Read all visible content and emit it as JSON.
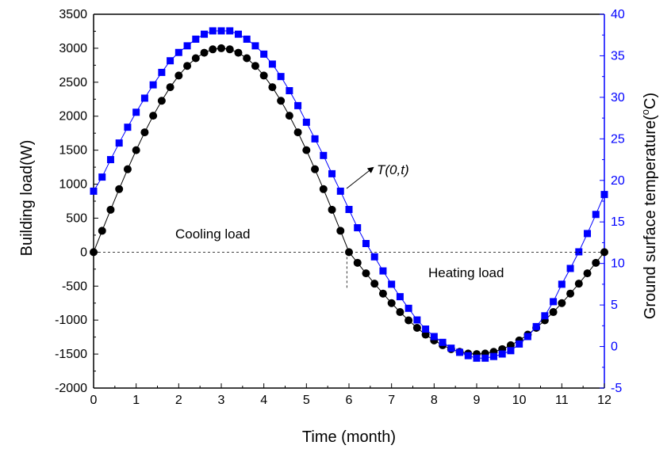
{
  "chart_data": {
    "type": "scatter",
    "title": "",
    "xlabel": "Time (month)",
    "ylabel": "Building load(W)",
    "y2label": "Ground surface temperature(",
    "y2label_sup": "o",
    "y2label_tail": "C)",
    "xlim": [
      0,
      12
    ],
    "ylim": [
      -2000,
      3500
    ],
    "y2lim": [
      -5,
      40
    ],
    "xticks": [
      "0",
      "1",
      "2",
      "3",
      "4",
      "5",
      "6",
      "7",
      "8",
      "9",
      "10",
      "11",
      "12"
    ],
    "yticks": [
      "-2000",
      "-1500",
      "-1000",
      "-500",
      "0",
      "500",
      "1000",
      "1500",
      "2000",
      "2500",
      "3000",
      "3500"
    ],
    "y2ticks": [
      "-5",
      "0",
      "5",
      "10",
      "15",
      "20",
      "25",
      "30",
      "35",
      "40"
    ],
    "grid": false,
    "x": [
      0,
      0.2,
      0.4,
      0.6,
      0.8,
      1.0,
      1.2,
      1.4,
      1.6,
      1.8,
      2.0,
      2.2,
      2.4,
      2.6,
      2.8,
      3.0,
      3.2,
      3.4,
      3.6,
      3.8,
      4.0,
      4.2,
      4.4,
      4.6,
      4.8,
      5.0,
      5.2,
      5.4,
      5.6,
      5.8,
      6.0,
      6.2,
      6.4,
      6.6,
      6.8,
      7.0,
      7.2,
      7.4,
      7.6,
      7.8,
      8.0,
      8.2,
      8.4,
      8.6,
      8.8,
      9.0,
      9.2,
      9.4,
      9.6,
      9.8,
      10.0,
      10.2,
      10.4,
      10.6,
      10.8,
      11.0,
      11.2,
      11.4,
      11.6,
      11.8,
      12.0
    ],
    "series": [
      {
        "name": "",
        "axis": "left",
        "color": "#000000",
        "marker": "circle",
        "values": [
          0,
          314,
          624,
          927,
          1220,
          1500,
          1763,
          2007,
          2227,
          2427,
          2598,
          2740,
          2853,
          2934,
          2984,
          3000,
          2984,
          2934,
          2853,
          2740,
          2598,
          2427,
          2227,
          2007,
          1763,
          1500,
          1220,
          927,
          624,
          314,
          0,
          -157,
          -312,
          -464,
          -610,
          -750,
          -882,
          -1004,
          -1114,
          -1214,
          -1299,
          -1370,
          -1427,
          -1467,
          -1492,
          -1500,
          -1492,
          -1467,
          -1427,
          -1370,
          -1299,
          -1214,
          -1114,
          -1004,
          -882,
          -750,
          -610,
          -464,
          -312,
          -157,
          0
        ]
      },
      {
        "name": "",
        "axis": "right",
        "color": "#0000ff",
        "marker": "square",
        "values": [
          18.7,
          20.4,
          22.5,
          24.5,
          26.4,
          28.2,
          29.9,
          31.5,
          33.0,
          34.4,
          35.4,
          36.2,
          37.0,
          37.6,
          38.0,
          38.0,
          38.0,
          37.6,
          37.0,
          36.2,
          35.2,
          34.0,
          32.5,
          30.8,
          29.0,
          27.0,
          25.0,
          23.0,
          20.8,
          18.7,
          16.5,
          14.3,
          12.4,
          10.8,
          9.1,
          7.5,
          6.0,
          4.6,
          3.2,
          2.1,
          1.2,
          0.5,
          -0.2,
          -0.7,
          -1.1,
          -1.4,
          -1.4,
          -1.2,
          -0.9,
          -0.5,
          0.3,
          1.2,
          2.4,
          3.7,
          5.4,
          7.5,
          9.4,
          11.4,
          13.6,
          15.9,
          18.3
        ]
      }
    ],
    "reference_lines": [
      {
        "orientation": "horizontal",
        "axis": "left",
        "value": 0,
        "style": "dashed"
      },
      {
        "orientation": "vertical",
        "value": 5.95,
        "from": 0,
        "to": -560,
        "style": "dashed"
      }
    ],
    "annotations": [
      {
        "text": "Cooling load"
      },
      {
        "text": "Heating load"
      },
      {
        "text": "T(0,t)",
        "italic": true,
        "arrow": true
      }
    ]
  }
}
